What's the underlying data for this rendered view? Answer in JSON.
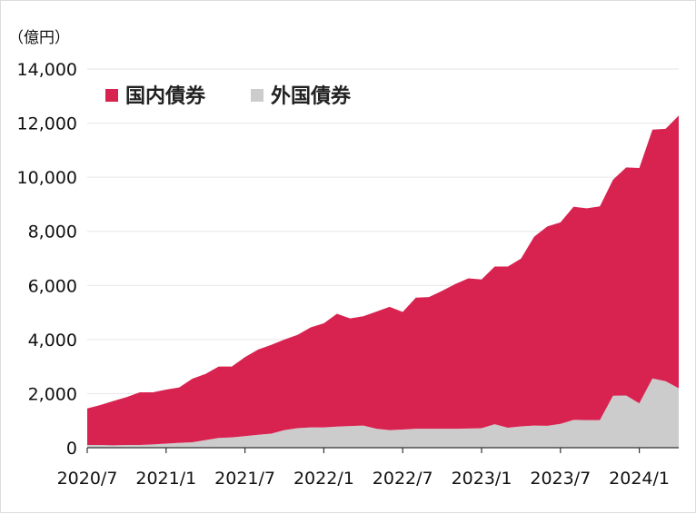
{
  "chart_data": {
    "type": "area",
    "stacked": true,
    "unit_label": "（億円）",
    "x_tick_labels": [
      "2020/7",
      "2021/1",
      "2021/7",
      "2022/1",
      "2022/7",
      "2023/1",
      "2023/7",
      "2024/1"
    ],
    "y_tick_labels": [
      "0",
      "2,000",
      "4,000",
      "6,000",
      "8,000",
      "10,000",
      "12,000",
      "14,000"
    ],
    "ylim": [
      0,
      14000
    ],
    "grid": true,
    "legend_position": "top-left",
    "x": [
      "2020/7",
      "2020/8",
      "2020/9",
      "2020/10",
      "2020/11",
      "2020/12",
      "2021/1",
      "2021/2",
      "2021/3",
      "2021/4",
      "2021/5",
      "2021/6",
      "2021/7",
      "2021/8",
      "2021/9",
      "2021/10",
      "2021/11",
      "2021/12",
      "2022/1",
      "2022/2",
      "2022/3",
      "2022/4",
      "2022/5",
      "2022/6",
      "2022/7",
      "2022/8",
      "2022/9",
      "2022/10",
      "2022/11",
      "2022/12",
      "2023/1",
      "2023/2",
      "2023/3",
      "2023/4",
      "2023/5",
      "2023/6",
      "2023/7",
      "2023/8",
      "2023/9",
      "2023/10",
      "2023/11",
      "2023/12",
      "2024/1",
      "2024/2",
      "2024/3",
      "2024/4"
    ],
    "series": [
      {
        "name": "外国債券",
        "color": "#cccccc",
        "values": [
          100,
          100,
          90,
          100,
          100,
          120,
          150,
          180,
          200,
          280,
          360,
          380,
          430,
          480,
          520,
          650,
          720,
          750,
          750,
          780,
          800,
          820,
          700,
          650,
          670,
          700,
          700,
          700,
          700,
          710,
          720,
          870,
          740,
          790,
          820,
          810,
          880,
          1030,
          1020,
          1020,
          1920,
          1930,
          1640,
          2560,
          2460,
          2200
        ]
      },
      {
        "name": "国内債券",
        "color": "#d82350",
        "values": [
          1350,
          1480,
          1640,
          1770,
          1950,
          1930,
          2000,
          2050,
          2350,
          2450,
          2640,
          2620,
          2920,
          3150,
          3280,
          3350,
          3450,
          3700,
          3850,
          4170,
          3980,
          4040,
          4330,
          4560,
          4350,
          4850,
          4870,
          5100,
          5350,
          5550,
          5500,
          5830,
          5960,
          6200,
          6980,
          7370,
          7450,
          7880,
          7830,
          7900,
          7990,
          8430,
          8700,
          9200,
          9330,
          10080
        ]
      }
    ]
  }
}
